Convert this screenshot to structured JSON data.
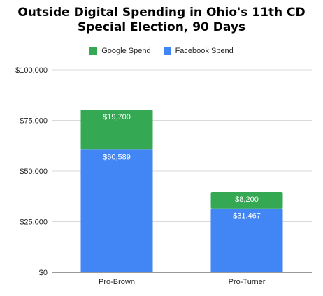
{
  "chart_data": {
    "type": "bar",
    "stacked": true,
    "title": "Outside Digital Spending in Ohio's 11th CD",
    "subtitle": "Special Election, 90 Days",
    "categories": [
      "Pro-Brown",
      "Pro-Turner"
    ],
    "series": [
      {
        "name": "Facebook Spend",
        "values": [
          60589,
          31467
        ],
        "labels": [
          "$60,589",
          "$31,467"
        ],
        "color": "#4285f4"
      },
      {
        "name": "Google Spend",
        "values": [
          19700,
          8200
        ],
        "labels": [
          "$19,700",
          "$8,200"
        ],
        "color": "#34a853"
      }
    ],
    "ylim": [
      0,
      100000
    ],
    "yticks": [
      0,
      25000,
      50000,
      75000,
      100000
    ],
    "ytick_labels": [
      "$0",
      "$25,000",
      "$50,000",
      "$75,000",
      "$100,000"
    ],
    "xlabel": "",
    "ylabel": "",
    "grid": true,
    "legend_position": "top"
  }
}
